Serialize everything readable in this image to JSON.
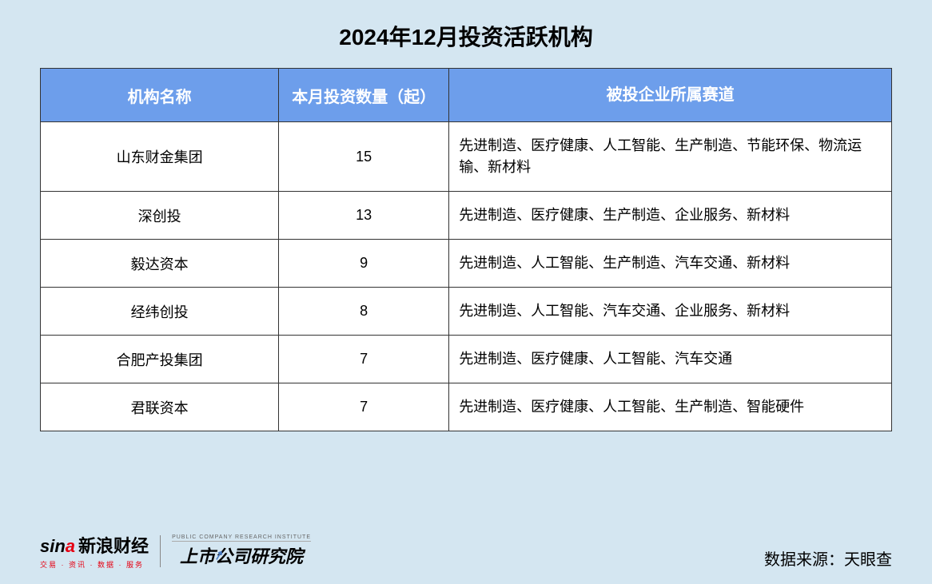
{
  "title": "2024年12月投资活跃机构",
  "table": {
    "type": "table",
    "header_bg_color": "#6d9eeb",
    "header_text_color": "#ffffff",
    "border_color": "#333333",
    "cell_bg_color": "#ffffff",
    "columns": [
      {
        "label": "机构名称",
        "width": "28%",
        "align": "center"
      },
      {
        "label": "本月投资数量（起）",
        "width": "20%",
        "align": "center"
      },
      {
        "label": "被投企业所属赛道",
        "width": "52%",
        "align": "left"
      }
    ],
    "rows": [
      {
        "name": "山东财金集团",
        "count": "15",
        "sectors": "先进制造、医疗健康、人工智能、生产制造、节能环保、物流运输、新材料"
      },
      {
        "name": "深创投",
        "count": "13",
        "sectors": "先进制造、医疗健康、生产制造、企业服务、新材料"
      },
      {
        "name": "毅达资本",
        "count": "9",
        "sectors": "先进制造、人工智能、生产制造、汽车交通、新材料"
      },
      {
        "name": "经纬创投",
        "count": "8",
        "sectors": "先进制造、人工智能、汽车交通、企业服务、新材料"
      },
      {
        "name": "合肥产投集团",
        "count": "7",
        "sectors": "先进制造、医疗健康、人工智能、汽车交通"
      },
      {
        "name": "君联资本",
        "count": "7",
        "sectors": "先进制造、医疗健康、人工智能、生产制造、智能硬件"
      }
    ]
  },
  "footer": {
    "sina_brand": "sina",
    "sina_text": "新浪财经",
    "sina_sub": "交易 · 资讯 · 数据 · 服务",
    "institute_en": "PUBLIC COMPANY RESEARCH INSTITUTE",
    "institute_cn": "上市公司研究院",
    "source_label": "数据来源：天眼查"
  },
  "styling": {
    "page_bg": "#d4e6f1",
    "title_fontsize": 28,
    "header_fontsize": 20,
    "cell_fontsize": 18,
    "source_fontsize": 20
  }
}
